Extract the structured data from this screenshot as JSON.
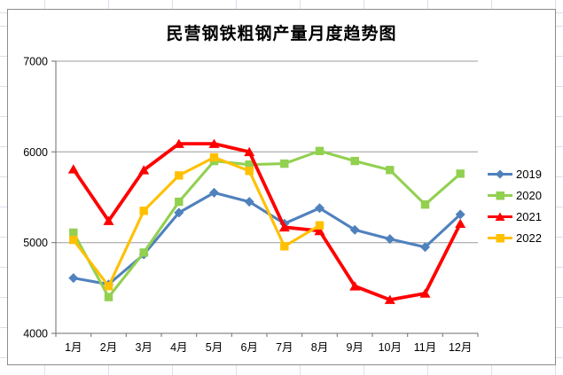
{
  "chart_data": {
    "type": "line",
    "title": "民营钢铁粗钢产量月度趋势图",
    "categories": [
      "1月",
      "2月",
      "3月",
      "4月",
      "5月",
      "6月",
      "7月",
      "8月",
      "9月",
      "10月",
      "11月",
      "12月"
    ],
    "series": [
      {
        "name": "2019",
        "color": "#4F81BD",
        "marker": "diamond",
        "values": [
          4610,
          4540,
          4870,
          5330,
          5550,
          5450,
          5210,
          5380,
          5140,
          5040,
          4950,
          5310
        ]
      },
      {
        "name": "2020",
        "color": "#92D050",
        "marker": "square",
        "values": [
          5110,
          4400,
          4890,
          5450,
          5900,
          5860,
          5870,
          6010,
          5900,
          5800,
          5420,
          5760
        ]
      },
      {
        "name": "2021",
        "color": "#FF0000",
        "marker": "triangle",
        "values": [
          5810,
          5240,
          5800,
          6090,
          6090,
          6000,
          5170,
          5130,
          4520,
          4370,
          4440,
          5210
        ]
      },
      {
        "name": "2022",
        "color": "#FFC000",
        "marker": "square",
        "values": [
          5030,
          4520,
          5350,
          5740,
          5940,
          5790,
          4960,
          5190,
          null,
          null,
          null,
          null
        ]
      }
    ],
    "ylim": [
      4000,
      7000
    ],
    "yticks": [
      4000,
      5000,
      6000,
      7000
    ],
    "grid": true,
    "legend_position": "right",
    "xlabel": "",
    "ylabel": ""
  },
  "style": {
    "gridline_color": "#9c9c9c",
    "axis_color": "#6e6e6e",
    "label_color": "#000000"
  }
}
